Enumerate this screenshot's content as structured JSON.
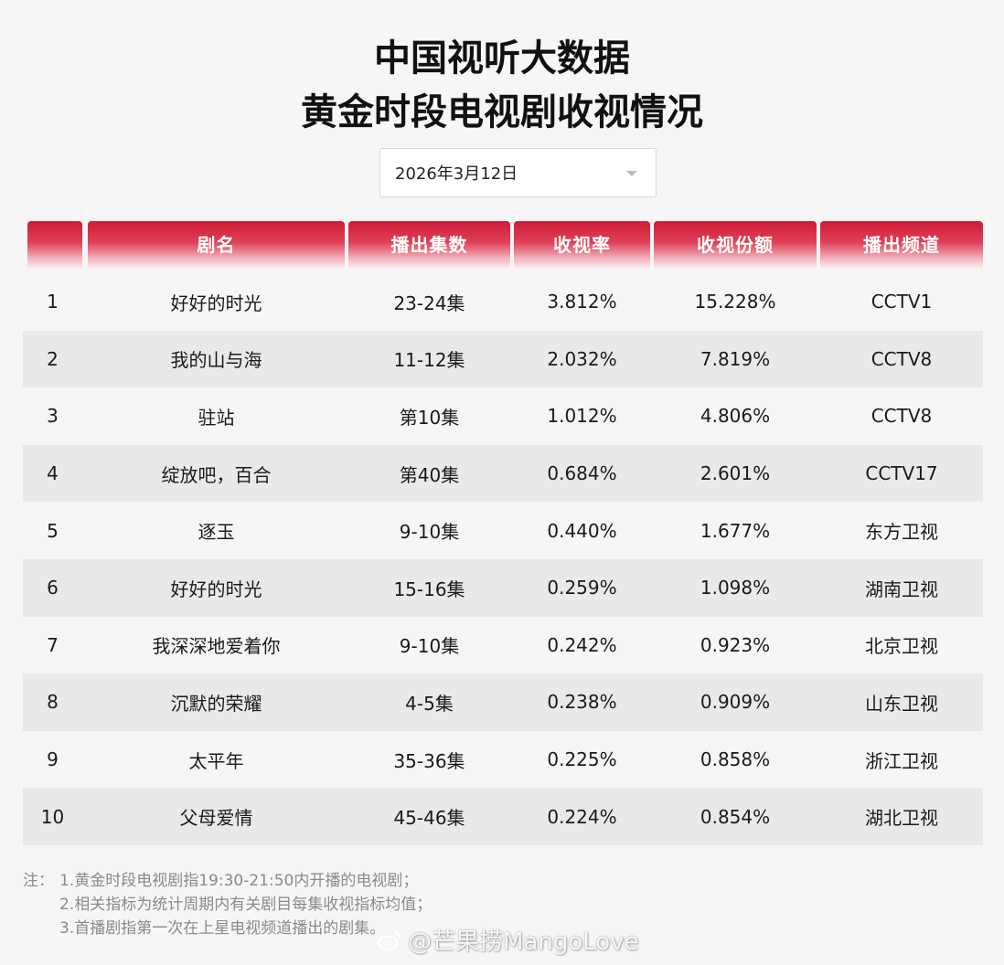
{
  "title_line1": "中国视听大数据",
  "title_line2": "黄金时段电视剧收视情况",
  "date_select": {
    "value": "2026年3月12日"
  },
  "columns": [
    "",
    "剧名",
    "播出集数",
    "收视率",
    "收视份额",
    "播出频道"
  ],
  "rows": [
    {
      "rank": "1",
      "name": "好好的时光",
      "episodes": "23-24集",
      "rating": "3.812%",
      "share": "15.228%",
      "channel": "CCTV1"
    },
    {
      "rank": "2",
      "name": "我的山与海",
      "episodes": "11-12集",
      "rating": "2.032%",
      "share": "7.819%",
      "channel": "CCTV8"
    },
    {
      "rank": "3",
      "name": "驻站",
      "episodes": "第10集",
      "rating": "1.012%",
      "share": "4.806%",
      "channel": "CCTV8"
    },
    {
      "rank": "4",
      "name": "绽放吧，百合",
      "episodes": "第40集",
      "rating": "0.684%",
      "share": "2.601%",
      "channel": "CCTV17"
    },
    {
      "rank": "5",
      "name": "逐玉",
      "episodes": "9-10集",
      "rating": "0.440%",
      "share": "1.677%",
      "channel": "东方卫视"
    },
    {
      "rank": "6",
      "name": "好好的时光",
      "episodes": "15-16集",
      "rating": "0.259%",
      "share": "1.098%",
      "channel": "湖南卫视"
    },
    {
      "rank": "7",
      "name": "我深深地爱着你",
      "episodes": "9-10集",
      "rating": "0.242%",
      "share": "0.923%",
      "channel": "北京卫视"
    },
    {
      "rank": "8",
      "name": "沉默的荣耀",
      "episodes": "4-5集",
      "rating": "0.238%",
      "share": "0.909%",
      "channel": "山东卫视"
    },
    {
      "rank": "9",
      "name": "太平年",
      "episodes": "35-36集",
      "rating": "0.225%",
      "share": "0.858%",
      "channel": "浙江卫视"
    },
    {
      "rank": "10",
      "name": "父母爱情",
      "episodes": "45-46集",
      "rating": "0.224%",
      "share": "0.854%",
      "channel": "湖北卫视"
    }
  ],
  "notes": {
    "label": "注：",
    "lines": [
      "1.黄金时段电视剧指19:30-21:50内开播的电视剧；",
      "2.相关指标为统计周期内有关剧目每集收视指标均值；",
      "3.首播剧指第一次在上星电视频道播出的剧集。"
    ]
  },
  "watermark": "@芒果捞MangoLove",
  "colors": {
    "header_red": "#cf1a35",
    "stripe": "#e9e9e9",
    "background": "#f6f6f6"
  },
  "icons": {
    "select_caret": "chevron-down-icon",
    "watermark_logo": "weibo-icon"
  }
}
